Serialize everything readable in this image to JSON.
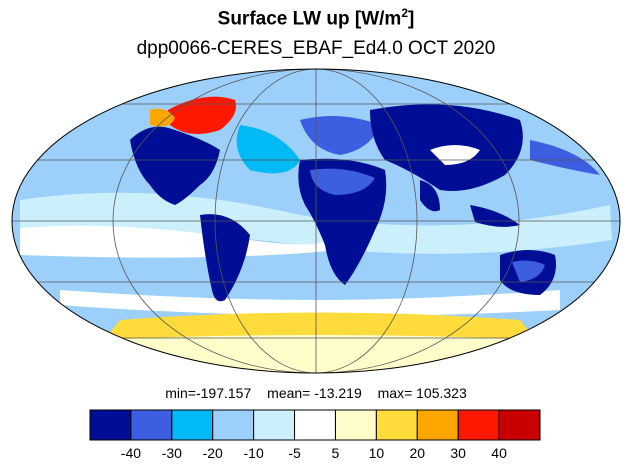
{
  "title": {
    "text": "Surface LW up [W/m",
    "exp": "2",
    "close": "]"
  },
  "subtitle": "dpp0066-CERES_EBAF_Ed4.0  OCT 2020",
  "stats": {
    "min": "min=-197.157",
    "mean": "mean= -13.219",
    "max": "max= 105.323"
  },
  "colorbar": {
    "colors": [
      "#000e96",
      "#3d5ee0",
      "#00b9f5",
      "#9ccffa",
      "#cbf0fb",
      "#ffffff",
      "#fffecb",
      "#ffdc3b",
      "#ffa600",
      "#ff1800",
      "#c90000"
    ],
    "labels": [
      "-40",
      "-30",
      "-20",
      "-10",
      "-5",
      "5",
      "10",
      "20",
      "30",
      "40"
    ]
  },
  "map": {
    "projection": "Mollweide",
    "ocean_color": "#9ccffa",
    "land_color": "#000e96",
    "grid_color": "#555555"
  }
}
